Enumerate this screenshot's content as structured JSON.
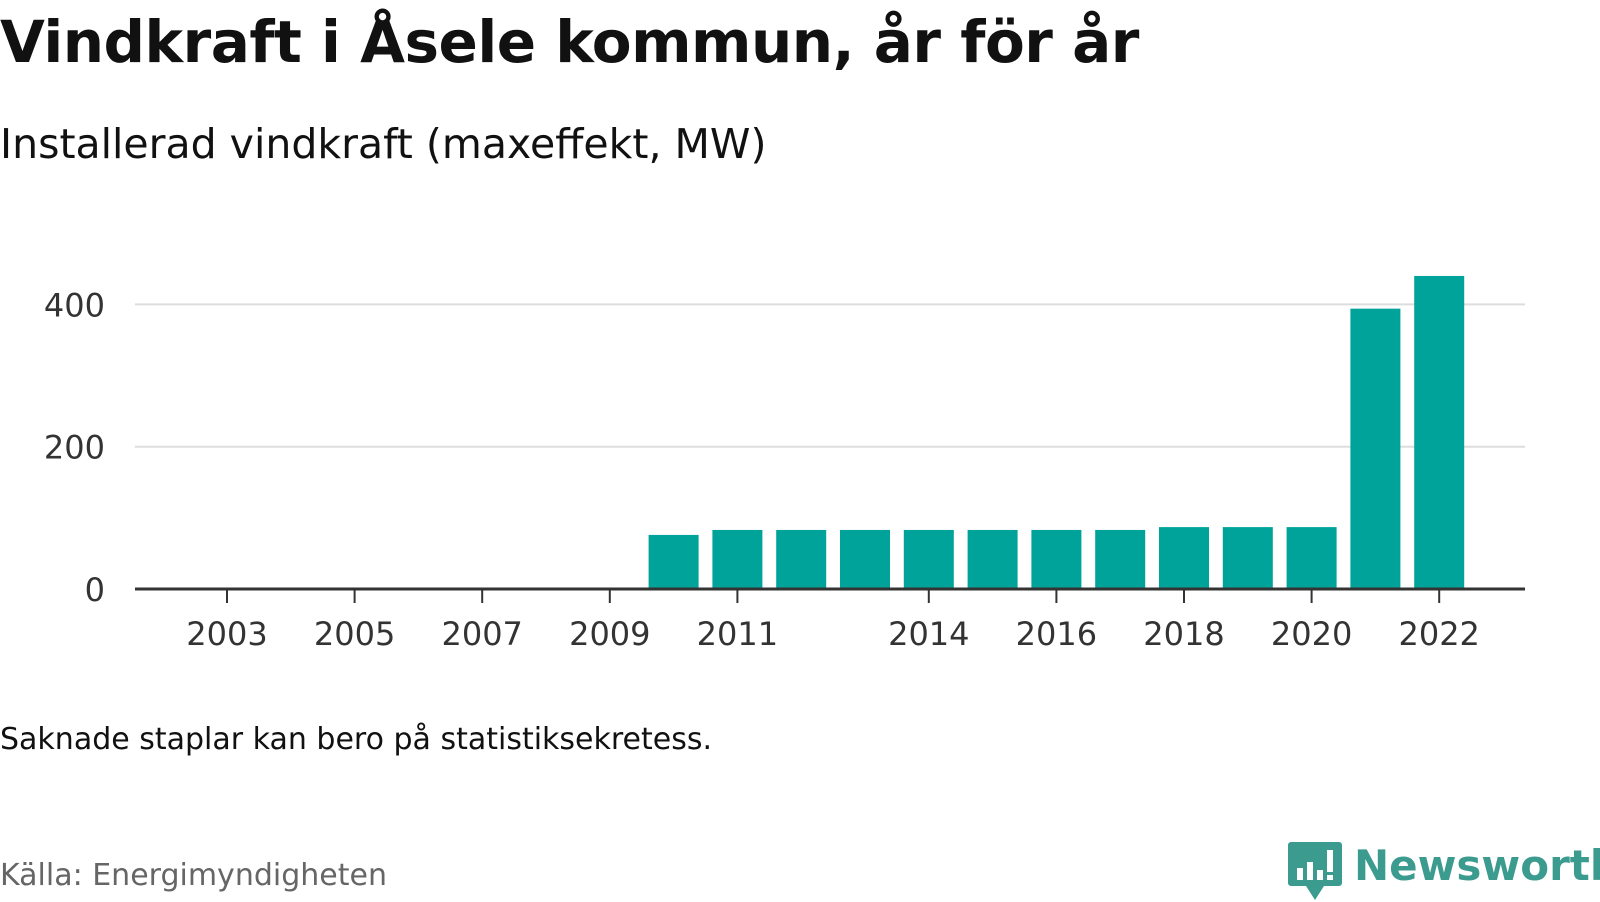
{
  "title": "Vindkraft i Åsele kommun, år för år",
  "subtitle": "Installerad vindkraft (maxeffekt, MW)",
  "note": "Saknade staplar kan bero på statistiksekretess.",
  "source": "Källa: Energimyndigheten",
  "brand": {
    "name": "Newsworthy",
    "icon": "newsworthy-logo-icon",
    "color": "#3b9b8e"
  },
  "colors": {
    "bar": "#00a39a",
    "gridline": "#dddddd",
    "axis": "#333333",
    "tick_label": "#333333"
  },
  "chart_data": {
    "type": "bar",
    "title": "Vindkraft i Åsele kommun, år för år",
    "subtitle": "Installerad vindkraft (maxeffekt, MW)",
    "xlabel": "",
    "ylabel": "",
    "categories": [
      "2003",
      "2004",
      "2005",
      "2006",
      "2007",
      "2008",
      "2009",
      "2010",
      "2011",
      "2012",
      "2013",
      "2014",
      "2015",
      "2016",
      "2017",
      "2018",
      "2019",
      "2020",
      "2021",
      "2022"
    ],
    "values": [
      null,
      null,
      null,
      null,
      null,
      null,
      null,
      76,
      83,
      83,
      83,
      83,
      83,
      83,
      83,
      87,
      87,
      87,
      394,
      440
    ],
    "x_tick_labels": [
      "2003",
      "2005",
      "2007",
      "2009",
      "2011",
      "2014",
      "2016",
      "2018",
      "2020",
      "2022"
    ],
    "y_ticks": [
      0,
      200,
      400
    ],
    "ylim": [
      0,
      440
    ],
    "grid": true,
    "legend": "none"
  }
}
